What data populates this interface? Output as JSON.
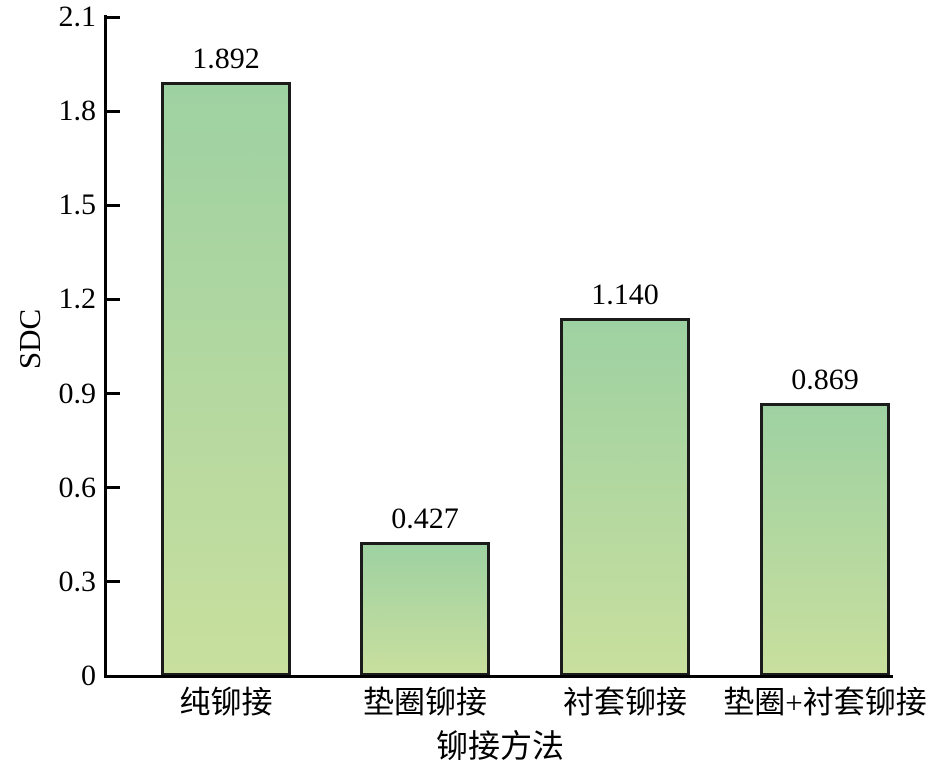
{
  "chart_data": {
    "type": "bar",
    "title": "",
    "xlabel": "铆接方法",
    "ylabel": "SDC",
    "categories": [
      "纯铆接",
      "垫圈铆接",
      "衬套铆接",
      "垫圈+衬套铆接"
    ],
    "values": [
      1.892,
      0.427,
      1.14,
      0.869
    ],
    "value_labels": [
      "1.892",
      "0.427",
      "1.140",
      "0.869"
    ],
    "ylim": [
      0,
      2.1
    ],
    "yticks": [
      0,
      0.3,
      0.6,
      0.9,
      1.2,
      1.5,
      1.8,
      2.1
    ],
    "ytick_labels": [
      "0",
      "0.3",
      "0.6",
      "0.9",
      "1.2",
      "1.5",
      "1.8",
      "2.1"
    ],
    "grid": false,
    "legend": null,
    "colors": {
      "bar_gradient_top": "#9ed1a2",
      "bar_gradient_bottom": "#c8df9e",
      "bar_border": "#1b1b1b",
      "axis": "#000000",
      "text": "#000000",
      "background": "#ffffff"
    }
  }
}
